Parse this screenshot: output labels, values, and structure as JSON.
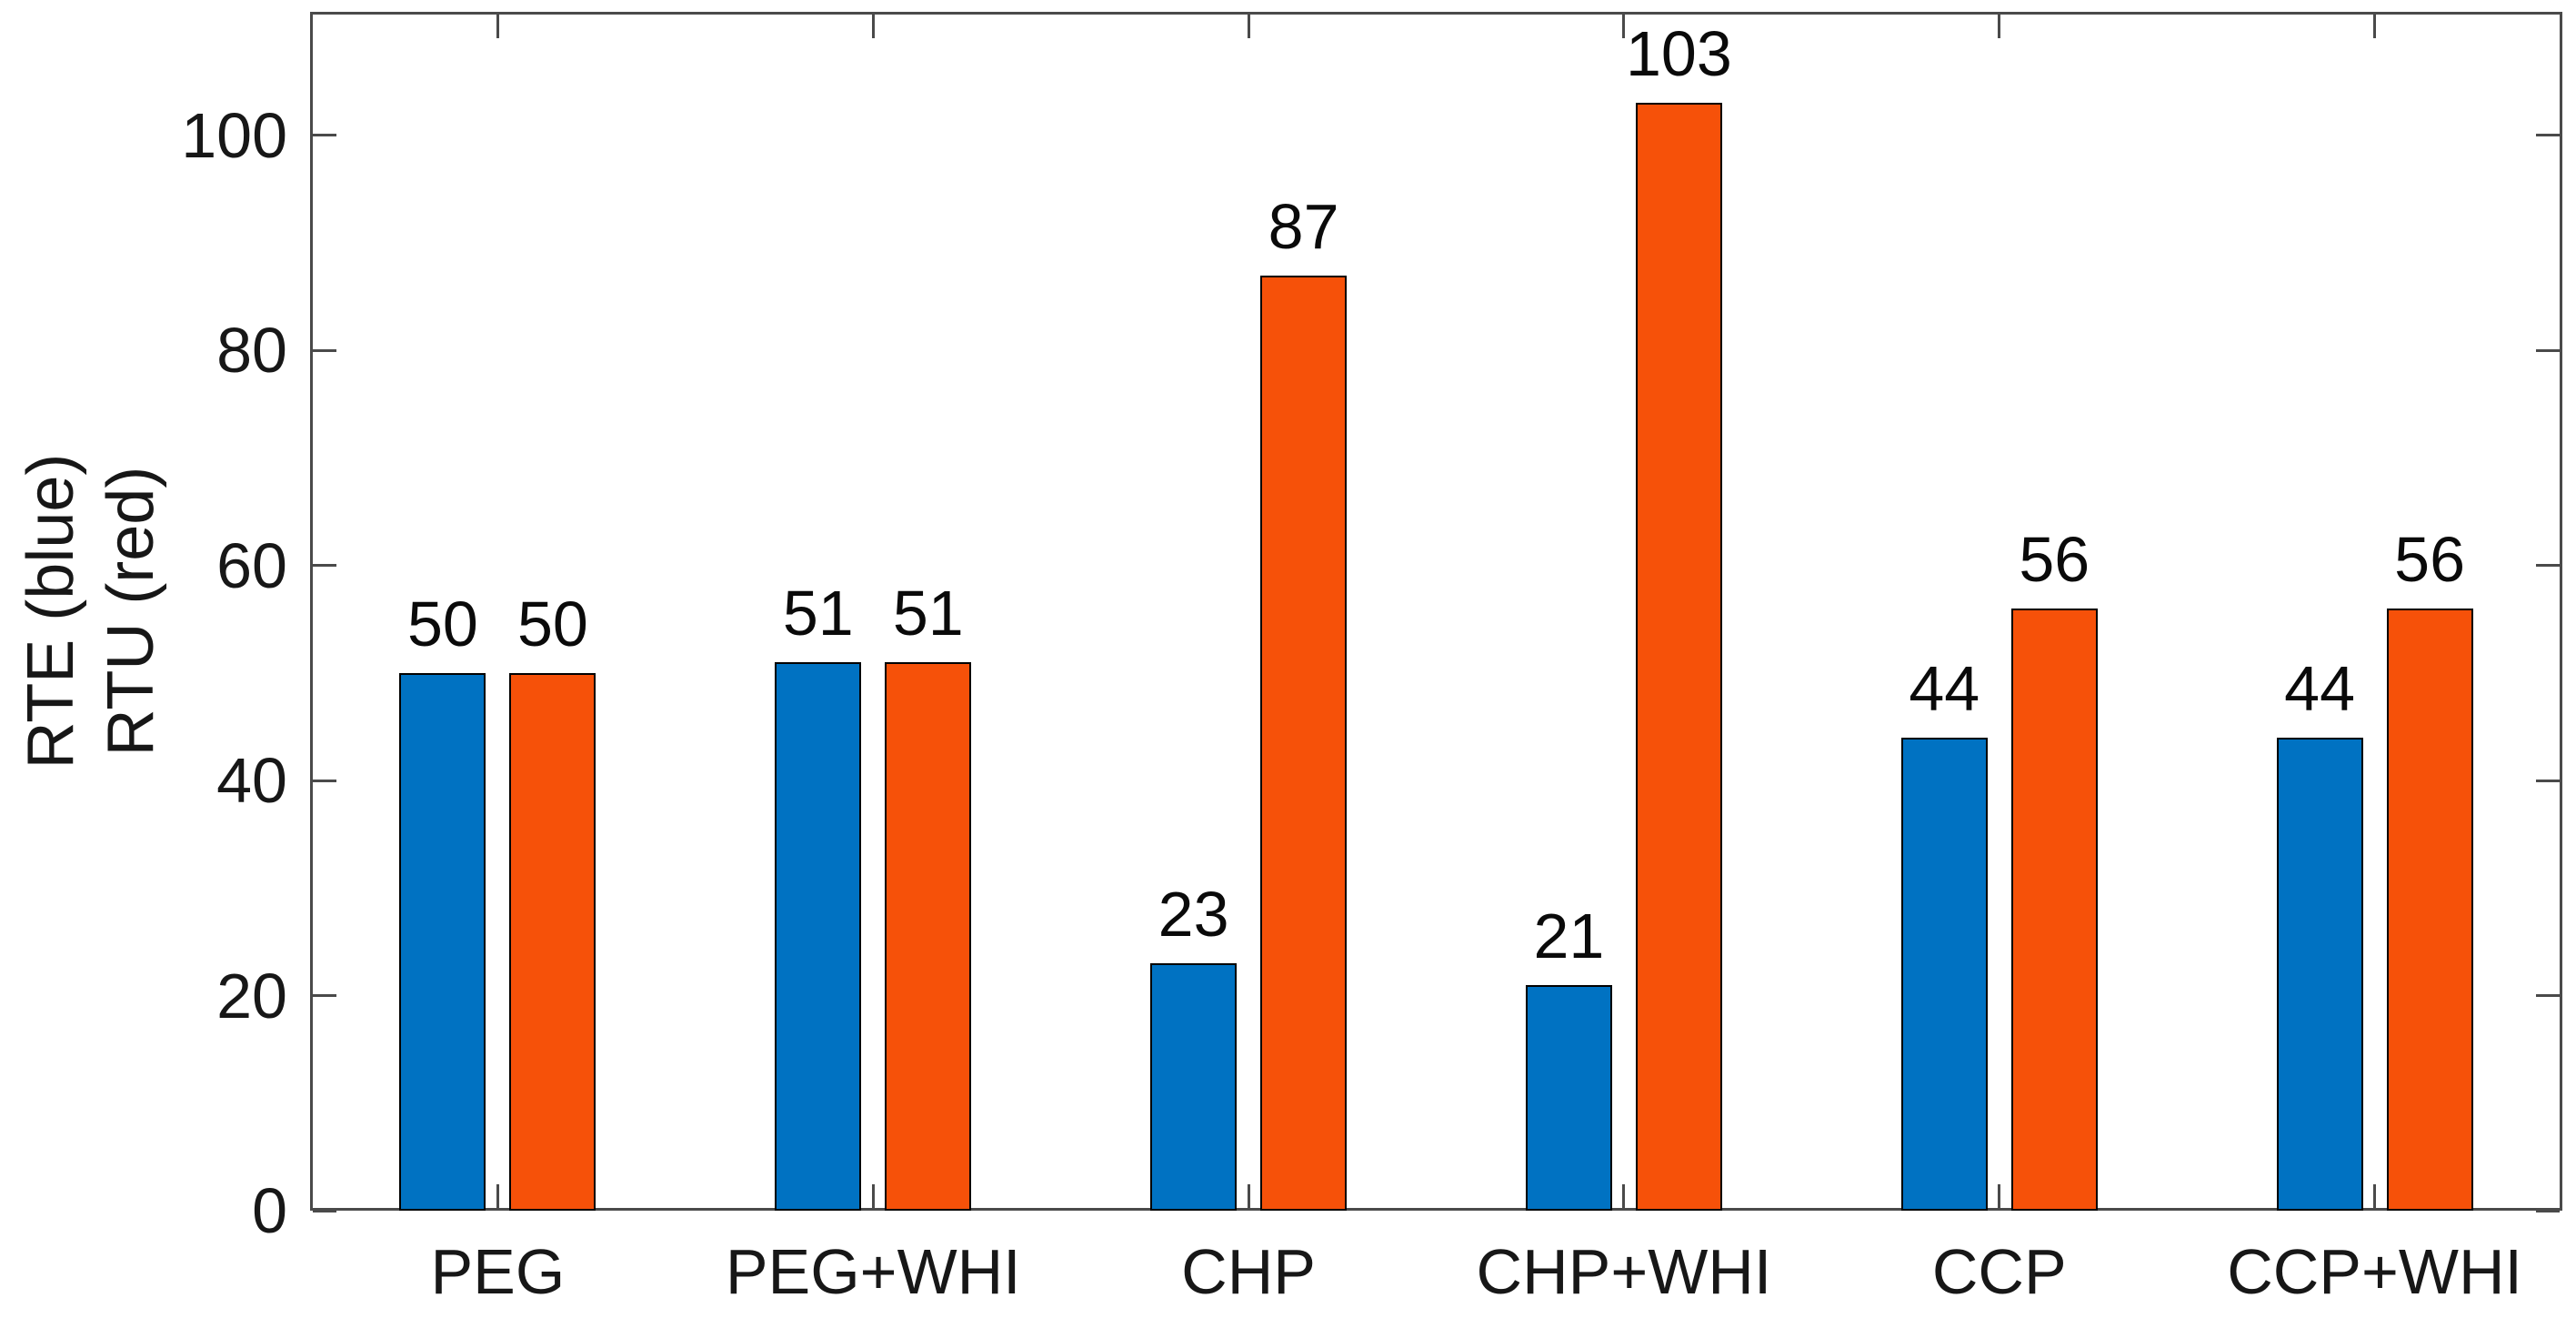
{
  "chart_data": {
    "type": "bar",
    "title": "",
    "categories": [
      "PEG",
      "PEG+WHI",
      "CHP",
      "CHP+WHI",
      "CCP",
      "CCP+WHI"
    ],
    "series": [
      {
        "name": "RTE",
        "color": "#0072C2",
        "values": [
          50,
          51,
          23,
          21,
          44,
          44
        ]
      },
      {
        "name": "RTU",
        "color": "#F65109",
        "values": [
          50,
          51,
          87,
          103,
          56,
          56
        ]
      }
    ],
    "bar_value_labels": {
      "RTE": [
        "50",
        "51",
        "23",
        "21",
        "44",
        "44"
      ],
      "RTU": [
        "50",
        "51",
        "87",
        "103",
        "56",
        "56"
      ]
    },
    "ylabel_lines": [
      "RTE (blue)",
      "RTU (red)"
    ],
    "xlabel": "",
    "yticks": [
      "0",
      "20",
      "40",
      "60",
      "80",
      "100"
    ],
    "ytick_values": [
      0,
      20,
      40,
      60,
      80,
      100
    ],
    "ylim": [
      0,
      111.5
    ],
    "grid": false,
    "legend": "none",
    "axis_color": "#4a4a4a",
    "text_color": "#171717",
    "bar_edge_color": "#000000",
    "plot_background": "#ffffff"
  }
}
